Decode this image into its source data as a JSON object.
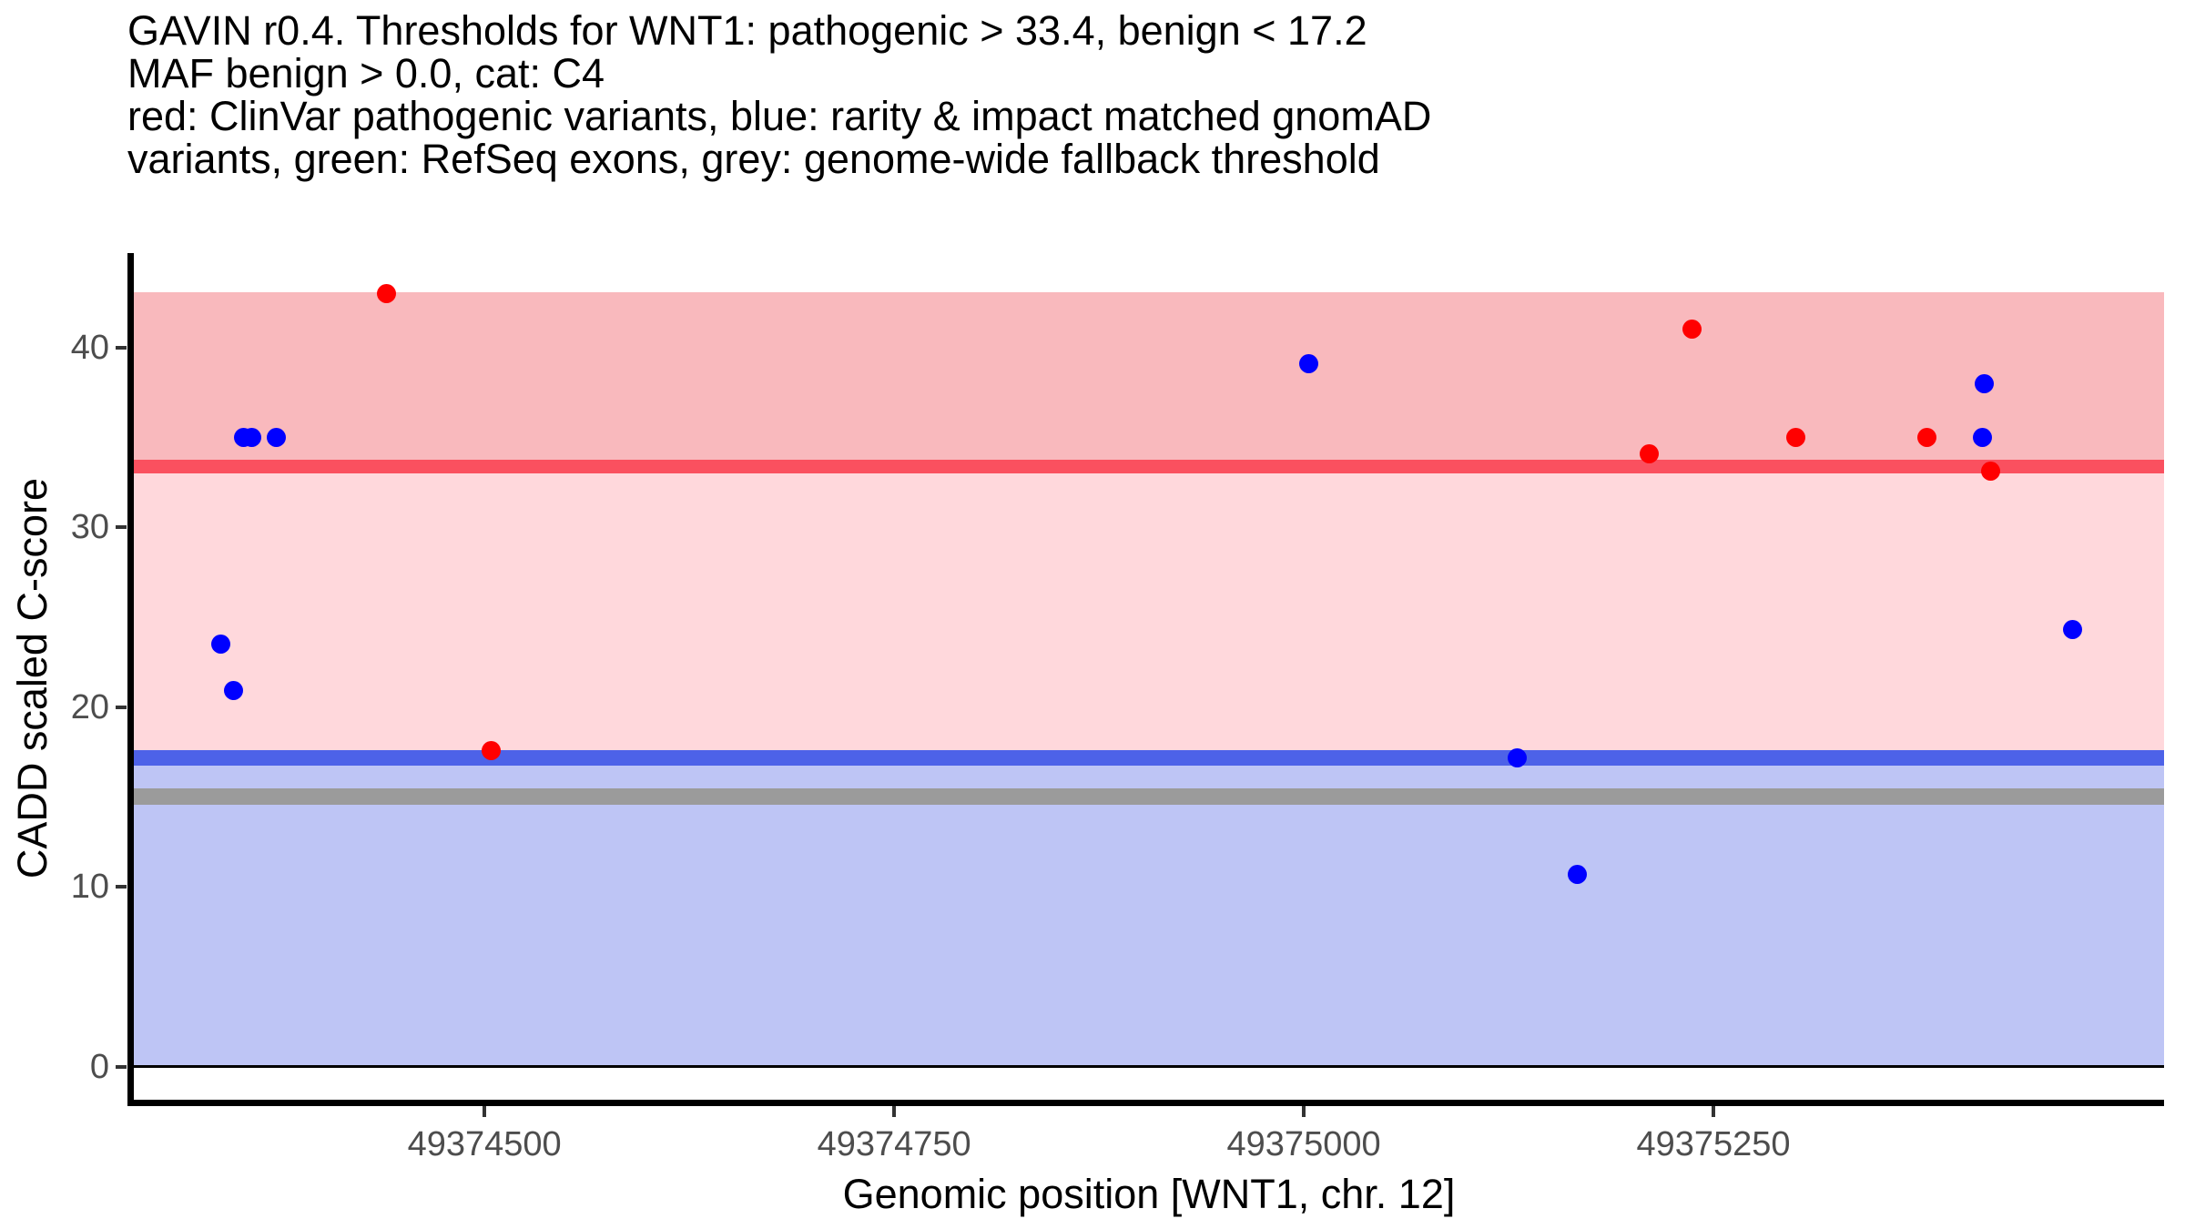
{
  "header": {
    "lines": [
      "GAVIN r0.4. Thresholds for WNT1: pathogenic > 33.4, benign < 17.2",
      "MAF benign > 0.0, cat: C4",
      "red: ClinVar pathogenic variants, blue: rarity & impact matched gnomAD",
      "variants, green: RefSeq exons, grey: genome-wide fallback threshold"
    ]
  },
  "chart_data": {
    "type": "scatter",
    "title": "GAVIN r0.4. Thresholds for WNT1: pathogenic > 33.4, benign < 17.2, MAF benign > 0.0, cat: C4",
    "xlabel": "Genomic position [WNT1, chr. 12]",
    "ylabel": "CADD scaled C-score",
    "xlim": [
      49374286,
      49375525
    ],
    "ylim": [
      -2.04,
      45.25
    ],
    "grid": false,
    "legend": "in caption text: red = ClinVar pathogenic variants, blue = rarity & impact matched gnomAD variants, grey = genome-wide fallback threshold",
    "x_ticks": [
      {
        "label": "49374500",
        "pos": 49374500
      },
      {
        "label": "49374750",
        "pos": 49374750
      },
      {
        "label": "49375000",
        "pos": 49375000
      },
      {
        "label": "49375250",
        "pos": 49375250
      }
    ],
    "y_ticks": [
      {
        "label": "0",
        "value": 0
      },
      {
        "label": "10",
        "value": 10
      },
      {
        "label": "20",
        "value": 20
      },
      {
        "label": "30",
        "value": 30
      },
      {
        "label": "40",
        "value": 40
      }
    ],
    "thresholds": {
      "pathogenic_gt": 33.4,
      "benign_lt": 17.2,
      "maf_benign_gt": 0.0,
      "category": "C4",
      "genome_wide_fallback": 15
    },
    "bands": [
      {
        "name": "pathogenic-region",
        "from": 33.4,
        "to": 43.05,
        "color": "#F9B9BD"
      },
      {
        "name": "intermediate-region",
        "from": 17.2,
        "to": 33.4,
        "color": "#FFD8DC"
      },
      {
        "name": "benign-region",
        "from": 0,
        "to": 17.2,
        "color": "#BEC5F5"
      }
    ],
    "hlines": [
      {
        "name": "genome-wide-fallback-line",
        "value": 15,
        "color": "#9B9B9B",
        "thickness": 18
      },
      {
        "name": "pathogenic-threshold-line",
        "value": 33.4,
        "color": "#FA505F",
        "thickness": 15
      },
      {
        "name": "benign-threshold-line",
        "value": 17.2,
        "color": "#4D62E8",
        "thickness": 17
      },
      {
        "name": "zero-baseline",
        "value": 0,
        "color": "#000000",
        "thickness": 3
      }
    ],
    "series": [
      {
        "name": "ClinVar pathogenic variants",
        "point_name": "clinvar-pathogenic-point",
        "color": "#FF0000",
        "points": [
          {
            "pos": 49374440,
            "cadd": 43.0
          },
          {
            "pos": 49374504,
            "cadd": 17.6
          },
          {
            "pos": 49375211,
            "cadd": 34.1
          },
          {
            "pos": 49375237,
            "cadd": 41.0
          },
          {
            "pos": 49375300,
            "cadd": 35.0
          },
          {
            "pos": 49375380,
            "cadd": 35.0
          },
          {
            "pos": 49375419,
            "cadd": 33.1
          }
        ]
      },
      {
        "name": "rarity & impact matched gnomAD variants",
        "point_name": "gnomad-matched-point",
        "color": "#0000FF",
        "points": [
          {
            "pos": 49374339,
            "cadd": 23.5
          },
          {
            "pos": 49374347,
            "cadd": 20.9
          },
          {
            "pos": 49374353,
            "cadd": 35.0
          },
          {
            "pos": 49374358,
            "cadd": 35.0
          },
          {
            "pos": 49374373,
            "cadd": 35.0
          },
          {
            "pos": 49375003,
            "cadd": 39.1
          },
          {
            "pos": 49375130,
            "cadd": 17.2
          },
          {
            "pos": 49375167,
            "cadd": 10.7
          },
          {
            "pos": 49375414,
            "cadd": 35.0
          },
          {
            "pos": 49375415,
            "cadd": 38.0
          },
          {
            "pos": 49375469,
            "cadd": 24.3
          }
        ]
      }
    ],
    "colors": {
      "axis_line": "#000000",
      "tick_mark": "#333333",
      "tick_label": "#4d4d4d",
      "title_text": "#000000"
    }
  }
}
